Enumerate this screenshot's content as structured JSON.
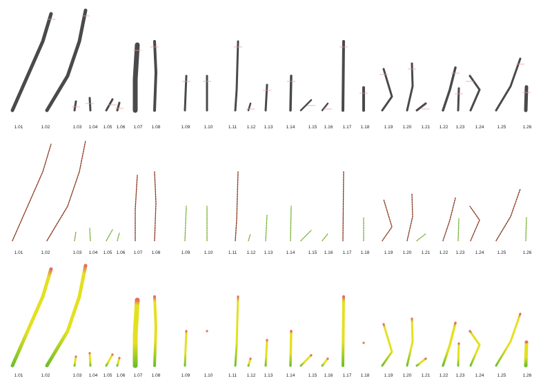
{
  "colors": {
    "silhouette": "#4a4a4a",
    "annotation": "#e8a0a0",
    "stitch_dash": "#8a3a22",
    "stitch_green": "#7ab33a",
    "gradient_green": "#6fbf2a",
    "gradient_yellow": "#e4e020",
    "gradient_tip": "#e07060"
  },
  "rows": [
    {
      "style": "silhouette",
      "labels": [
        "1.01",
        "1.02",
        "1.03",
        "1.04",
        "1.05",
        "1.06",
        "1.07",
        "1.08",
        "1.09",
        "1.10",
        "1.11",
        "1.12",
        "1.13",
        "1.14",
        "1.15",
        "1.16",
        "1.17",
        "1.18",
        "1.19",
        "1.20",
        "1.21",
        "1.22",
        "1.23",
        "1.24",
        "1.25",
        "1.26"
      ]
    },
    {
      "style": "stitched",
      "labels": [
        "1.01",
        "1.02",
        "1.03",
        "1.04",
        "1.05",
        "1.06",
        "1.07",
        "1.08",
        "1.09",
        "1.10",
        "1.11",
        "1.12",
        "1.13",
        "1.14",
        "1.15",
        "1.16",
        "1.17",
        "1.18",
        "1.19",
        "1.20",
        "1.21",
        "1.22",
        "1.23",
        "1.24",
        "1.25",
        "1.26"
      ]
    },
    {
      "style": "gradient",
      "labels": [
        "1.01",
        "1.02",
        "1.03",
        "1.04",
        "1.05",
        "1.06",
        "1.07",
        "1.08",
        "1.09",
        "1.10",
        "1.11",
        "1.12",
        "1.13",
        "1.14",
        "1.15",
        "1.16",
        "1.17",
        "1.18",
        "1.19",
        "1.20",
        "1.21",
        "1.22",
        "1.23",
        "1.24",
        "1.25",
        "1.26"
      ]
    }
  ]
}
